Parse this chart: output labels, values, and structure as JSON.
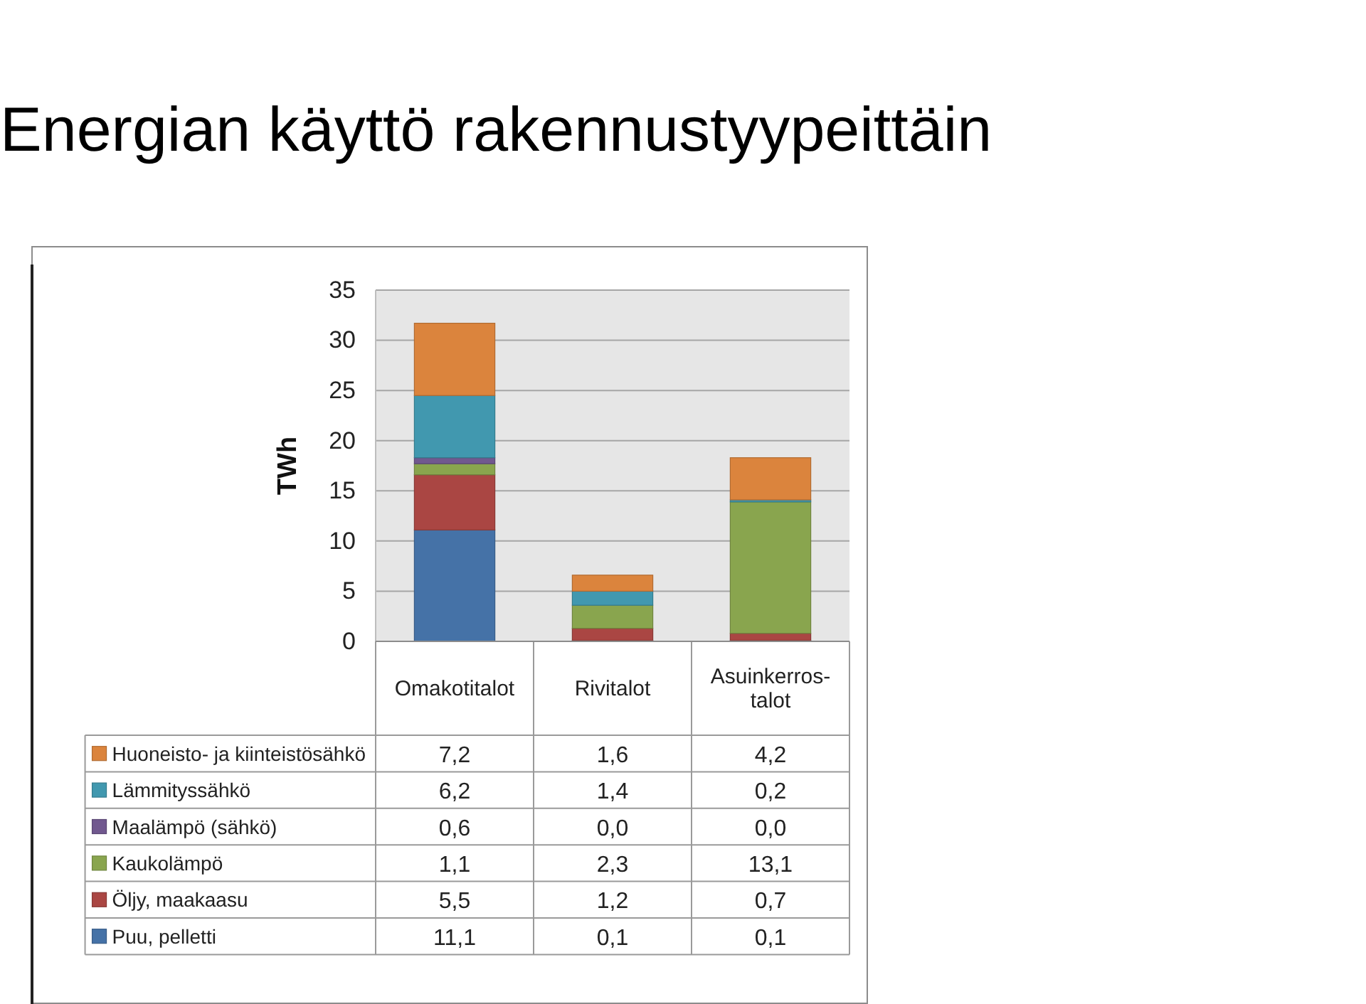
{
  "chart_data": {
    "type": "bar",
    "title": "Energian käyttö rakennustyypeittäin",
    "ylabel": "TWh",
    "categories": [
      "Omakotitalot",
      "Rivitalot",
      "Asuinkerros-talot"
    ],
    "stacked": true,
    "ylim": [
      0,
      35
    ],
    "yticks": [
      0,
      5,
      10,
      15,
      20,
      25,
      30,
      35
    ],
    "grid": "y",
    "legend": "bottom",
    "series": [
      {
        "name": "Puu, pelletti",
        "color": "#4572a7",
        "values": [
          11.1,
          0.1,
          0.1
        ],
        "value_labels": [
          "11,1",
          "0,1",
          "0,1"
        ]
      },
      {
        "name": "Öljy, maakaasu",
        "color": "#aa4643",
        "values": [
          5.5,
          1.2,
          0.7
        ],
        "value_labels": [
          "5,5",
          "1,2",
          "0,7"
        ]
      },
      {
        "name": "Kaukolämpö",
        "color": "#89a54e",
        "values": [
          1.1,
          2.3,
          13.1
        ],
        "value_labels": [
          "1,1",
          "2,3",
          "13,1"
        ]
      },
      {
        "name": "Maalämpö (sähkö)",
        "color": "#71588f",
        "values": [
          0.6,
          0.0,
          0.0
        ],
        "value_labels": [
          "0,6",
          "0,0",
          "0,0"
        ]
      },
      {
        "name": "Lämmityssähkö",
        "color": "#4198af",
        "values": [
          6.2,
          1.4,
          0.2
        ],
        "value_labels": [
          "6,2",
          "1,4",
          "0,2"
        ]
      },
      {
        "name": "Huoneisto- ja kiinteistösähkö",
        "color": "#db843d",
        "values": [
          7.2,
          1.6,
          4.2
        ],
        "value_labels": [
          "7,2",
          "1,6",
          "4,2"
        ]
      }
    ]
  }
}
